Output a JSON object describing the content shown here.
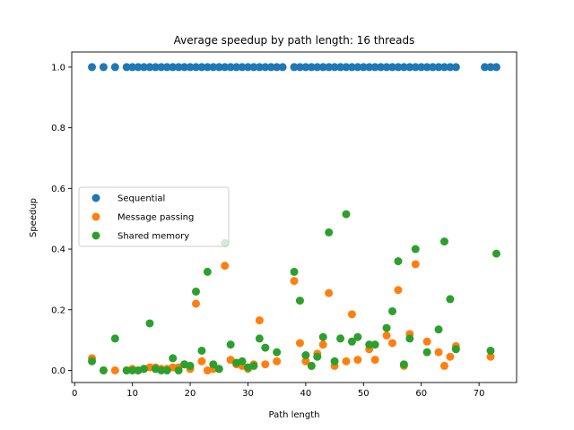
{
  "chart_data": {
    "type": "scatter",
    "title": "Average speedup by path length: 16 threads",
    "xlabel": "Path length",
    "ylabel": "Speedup",
    "xlim": [
      -0.5,
      76.5
    ],
    "ylim": [
      -0.04,
      1.05
    ],
    "xticks": [
      0,
      10,
      20,
      30,
      40,
      50,
      60,
      70
    ],
    "yticks": [
      0.0,
      0.2,
      0.4,
      0.6,
      0.8,
      1.0
    ],
    "ytick_labels": [
      "0.0",
      "0.2",
      "0.4",
      "0.6",
      "0.8",
      "1.0"
    ],
    "grid": false,
    "legend_position": "center-left",
    "series": [
      {
        "name": "Sequential",
        "color": "#1f77b4",
        "points": [
          [
            3,
            1.0
          ],
          [
            5,
            1.0
          ],
          [
            7,
            1.0
          ],
          [
            9,
            1.0
          ],
          [
            10,
            1.0
          ],
          [
            11,
            1.0
          ],
          [
            12,
            1.0
          ],
          [
            13,
            1.0
          ],
          [
            14,
            1.0
          ],
          [
            15,
            1.0
          ],
          [
            16,
            1.0
          ],
          [
            17,
            1.0
          ],
          [
            18,
            1.0
          ],
          [
            19,
            1.0
          ],
          [
            20,
            1.0
          ],
          [
            21,
            1.0
          ],
          [
            22,
            1.0
          ],
          [
            23,
            1.0
          ],
          [
            24,
            1.0
          ],
          [
            25,
            1.0
          ],
          [
            26,
            1.0
          ],
          [
            27,
            1.0
          ],
          [
            28,
            1.0
          ],
          [
            29,
            1.0
          ],
          [
            30,
            1.0
          ],
          [
            31,
            1.0
          ],
          [
            32,
            1.0
          ],
          [
            33,
            1.0
          ],
          [
            34,
            1.0
          ],
          [
            35,
            1.0
          ],
          [
            36,
            1.0
          ],
          [
            38,
            1.0
          ],
          [
            39,
            1.0
          ],
          [
            40,
            1.0
          ],
          [
            41,
            1.0
          ],
          [
            42,
            1.0
          ],
          [
            43,
            1.0
          ],
          [
            44,
            1.0
          ],
          [
            45,
            1.0
          ],
          [
            46,
            1.0
          ],
          [
            47,
            1.0
          ],
          [
            48,
            1.0
          ],
          [
            49,
            1.0
          ],
          [
            50,
            1.0
          ],
          [
            51,
            1.0
          ],
          [
            52,
            1.0
          ],
          [
            53,
            1.0
          ],
          [
            54,
            1.0
          ],
          [
            55,
            1.0
          ],
          [
            56,
            1.0
          ],
          [
            57,
            1.0
          ],
          [
            58,
            1.0
          ],
          [
            59,
            1.0
          ],
          [
            60,
            1.0
          ],
          [
            61,
            1.0
          ],
          [
            62,
            1.0
          ],
          [
            63,
            1.0
          ],
          [
            64,
            1.0
          ],
          [
            65,
            1.0
          ],
          [
            66,
            1.0
          ],
          [
            71,
            1.0
          ],
          [
            72,
            1.0
          ],
          [
            73,
            1.0
          ]
        ]
      },
      {
        "name": "Message passing",
        "color": "#ff7f0e",
        "points": [
          [
            3,
            0.04
          ],
          [
            5,
            0.0
          ],
          [
            7,
            0.0
          ],
          [
            9,
            0.0
          ],
          [
            10,
            0.005
          ],
          [
            11,
            0.0
          ],
          [
            12,
            0.005
          ],
          [
            13,
            0.01
          ],
          [
            14,
            0.01
          ],
          [
            15,
            0.005
          ],
          [
            16,
            0.005
          ],
          [
            17,
            0.01
          ],
          [
            18,
            0.01
          ],
          [
            19,
            0.02
          ],
          [
            20,
            0.005
          ],
          [
            21,
            0.22
          ],
          [
            22,
            0.03
          ],
          [
            23,
            0.0
          ],
          [
            24,
            0.005
          ],
          [
            25,
            0.005
          ],
          [
            26,
            0.345
          ],
          [
            27,
            0.035
          ],
          [
            28,
            0.02
          ],
          [
            29,
            0.015
          ],
          [
            30,
            0.005
          ],
          [
            31,
            0.02
          ],
          [
            32,
            0.165
          ],
          [
            33,
            0.02
          ],
          [
            35,
            0.03
          ],
          [
            38,
            0.295
          ],
          [
            39,
            0.09
          ],
          [
            40,
            0.03
          ],
          [
            41,
            0.015
          ],
          [
            42,
            0.055
          ],
          [
            43,
            0.085
          ],
          [
            44,
            0.255
          ],
          [
            45,
            0.015
          ],
          [
            47,
            0.03
          ],
          [
            48,
            0.185
          ],
          [
            49,
            0.035
          ],
          [
            51,
            0.07
          ],
          [
            52,
            0.035
          ],
          [
            54,
            0.115
          ],
          [
            55,
            0.09
          ],
          [
            56,
            0.265
          ],
          [
            57,
            0.015
          ],
          [
            58,
            0.12
          ],
          [
            59,
            0.35
          ],
          [
            61,
            0.095
          ],
          [
            63,
            0.06
          ],
          [
            64,
            0.015
          ],
          [
            65,
            0.045
          ],
          [
            66,
            0.08
          ],
          [
            72,
            0.045
          ]
        ]
      },
      {
        "name": "Shared memory",
        "color": "#2ca02c",
        "points": [
          [
            3,
            0.03
          ],
          [
            5,
            0.0
          ],
          [
            7,
            0.105
          ],
          [
            9,
            0.0
          ],
          [
            10,
            0.0
          ],
          [
            11,
            0.0
          ],
          [
            12,
            0.005
          ],
          [
            13,
            0.155
          ],
          [
            14,
            0.005
          ],
          [
            15,
            0.0
          ],
          [
            16,
            0.0
          ],
          [
            17,
            0.04
          ],
          [
            18,
            0.0
          ],
          [
            19,
            0.02
          ],
          [
            20,
            0.015
          ],
          [
            21,
            0.26
          ],
          [
            22,
            0.065
          ],
          [
            23,
            0.325
          ],
          [
            24,
            0.02
          ],
          [
            25,
            0.005
          ],
          [
            26,
            0.42
          ],
          [
            27,
            0.085
          ],
          [
            28,
            0.025
          ],
          [
            29,
            0.03
          ],
          [
            30,
            0.01
          ],
          [
            31,
            0.015
          ],
          [
            32,
            0.105
          ],
          [
            33,
            0.075
          ],
          [
            35,
            0.06
          ],
          [
            38,
            0.325
          ],
          [
            39,
            0.23
          ],
          [
            40,
            0.05
          ],
          [
            41,
            0.015
          ],
          [
            42,
            0.045
          ],
          [
            43,
            0.11
          ],
          [
            44,
            0.455
          ],
          [
            45,
            0.03
          ],
          [
            46,
            0.105
          ],
          [
            47,
            0.515
          ],
          [
            48,
            0.095
          ],
          [
            49,
            0.11
          ],
          [
            51,
            0.085
          ],
          [
            52,
            0.085
          ],
          [
            54,
            0.14
          ],
          [
            55,
            0.195
          ],
          [
            56,
            0.36
          ],
          [
            57,
            0.02
          ],
          [
            58,
            0.105
          ],
          [
            59,
            0.4
          ],
          [
            61,
            0.06
          ],
          [
            63,
            0.135
          ],
          [
            64,
            0.425
          ],
          [
            65,
            0.235
          ],
          [
            66,
            0.07
          ],
          [
            72,
            0.065
          ],
          [
            73,
            0.385
          ]
        ]
      }
    ]
  }
}
